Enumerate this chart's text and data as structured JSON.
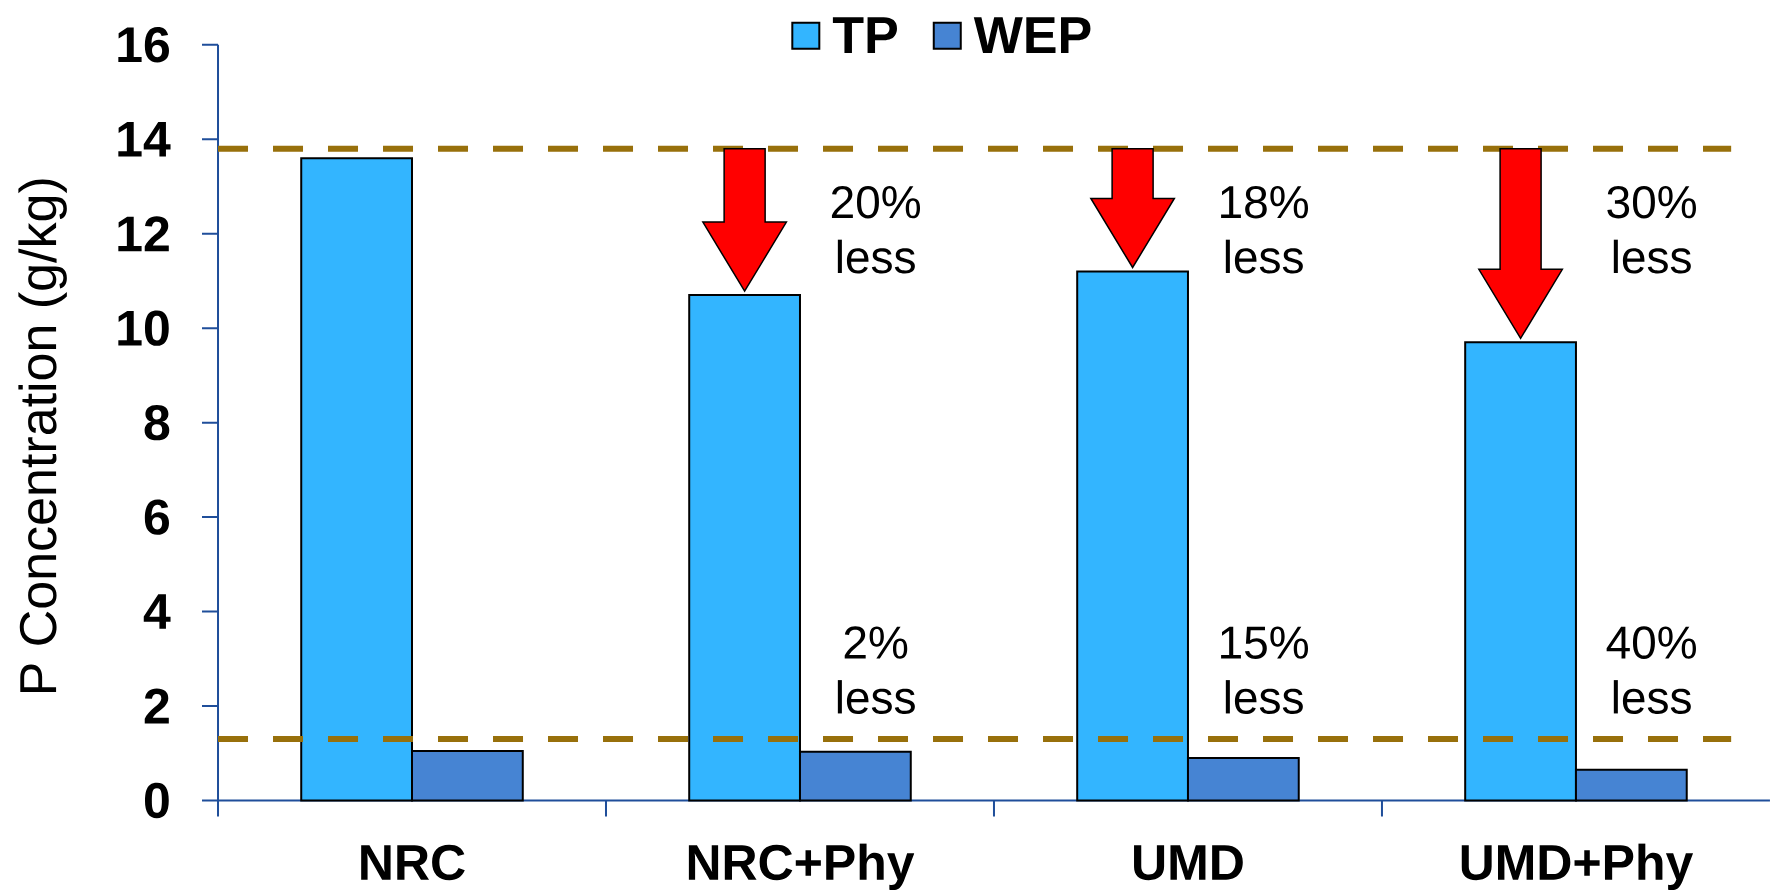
{
  "chart_data": {
    "type": "bar",
    "ylabel": "P Concentration (g/kg)",
    "categories": [
      "NRC",
      "NRC+Phy",
      "UMD",
      "UMD+Phy"
    ],
    "series": [
      {
        "name": "TP",
        "color": "#33b5ff",
        "values": [
          13.6,
          10.7,
          11.2,
          9.7
        ]
      },
      {
        "name": "WEP",
        "color": "#4684d3",
        "values": [
          1.05,
          1.03,
          0.9,
          0.65
        ]
      }
    ],
    "ylim": [
      0,
      16
    ],
    "yticks": [
      0,
      2,
      4,
      6,
      8,
      10,
      12,
      14,
      16
    ],
    "legend": "top",
    "ref_lines": [
      {
        "axis": "y",
        "value": 13.8,
        "color": "#98700b",
        "line_style": "dashed"
      },
      {
        "axis": "y",
        "value": 1.3,
        "color": "#98700b",
        "line_style": "dashed"
      }
    ],
    "annotations": [
      {
        "text": "20% less",
        "x": "NRC+Phy",
        "y": 10.7
      },
      {
        "text": "18% less",
        "x": "UMD",
        "y": 11.2
      },
      {
        "text": "30% less",
        "x": "UMD+Phy",
        "y": 9.7
      },
      {
        "text": "2% less",
        "x": "NRC+Phy",
        "y": 1.03
      },
      {
        "text": "15% less",
        "x": "UMD",
        "y": 0.9
      },
      {
        "text": "40% less",
        "x": "UMD+Phy",
        "y": 0.65
      }
    ]
  }
}
